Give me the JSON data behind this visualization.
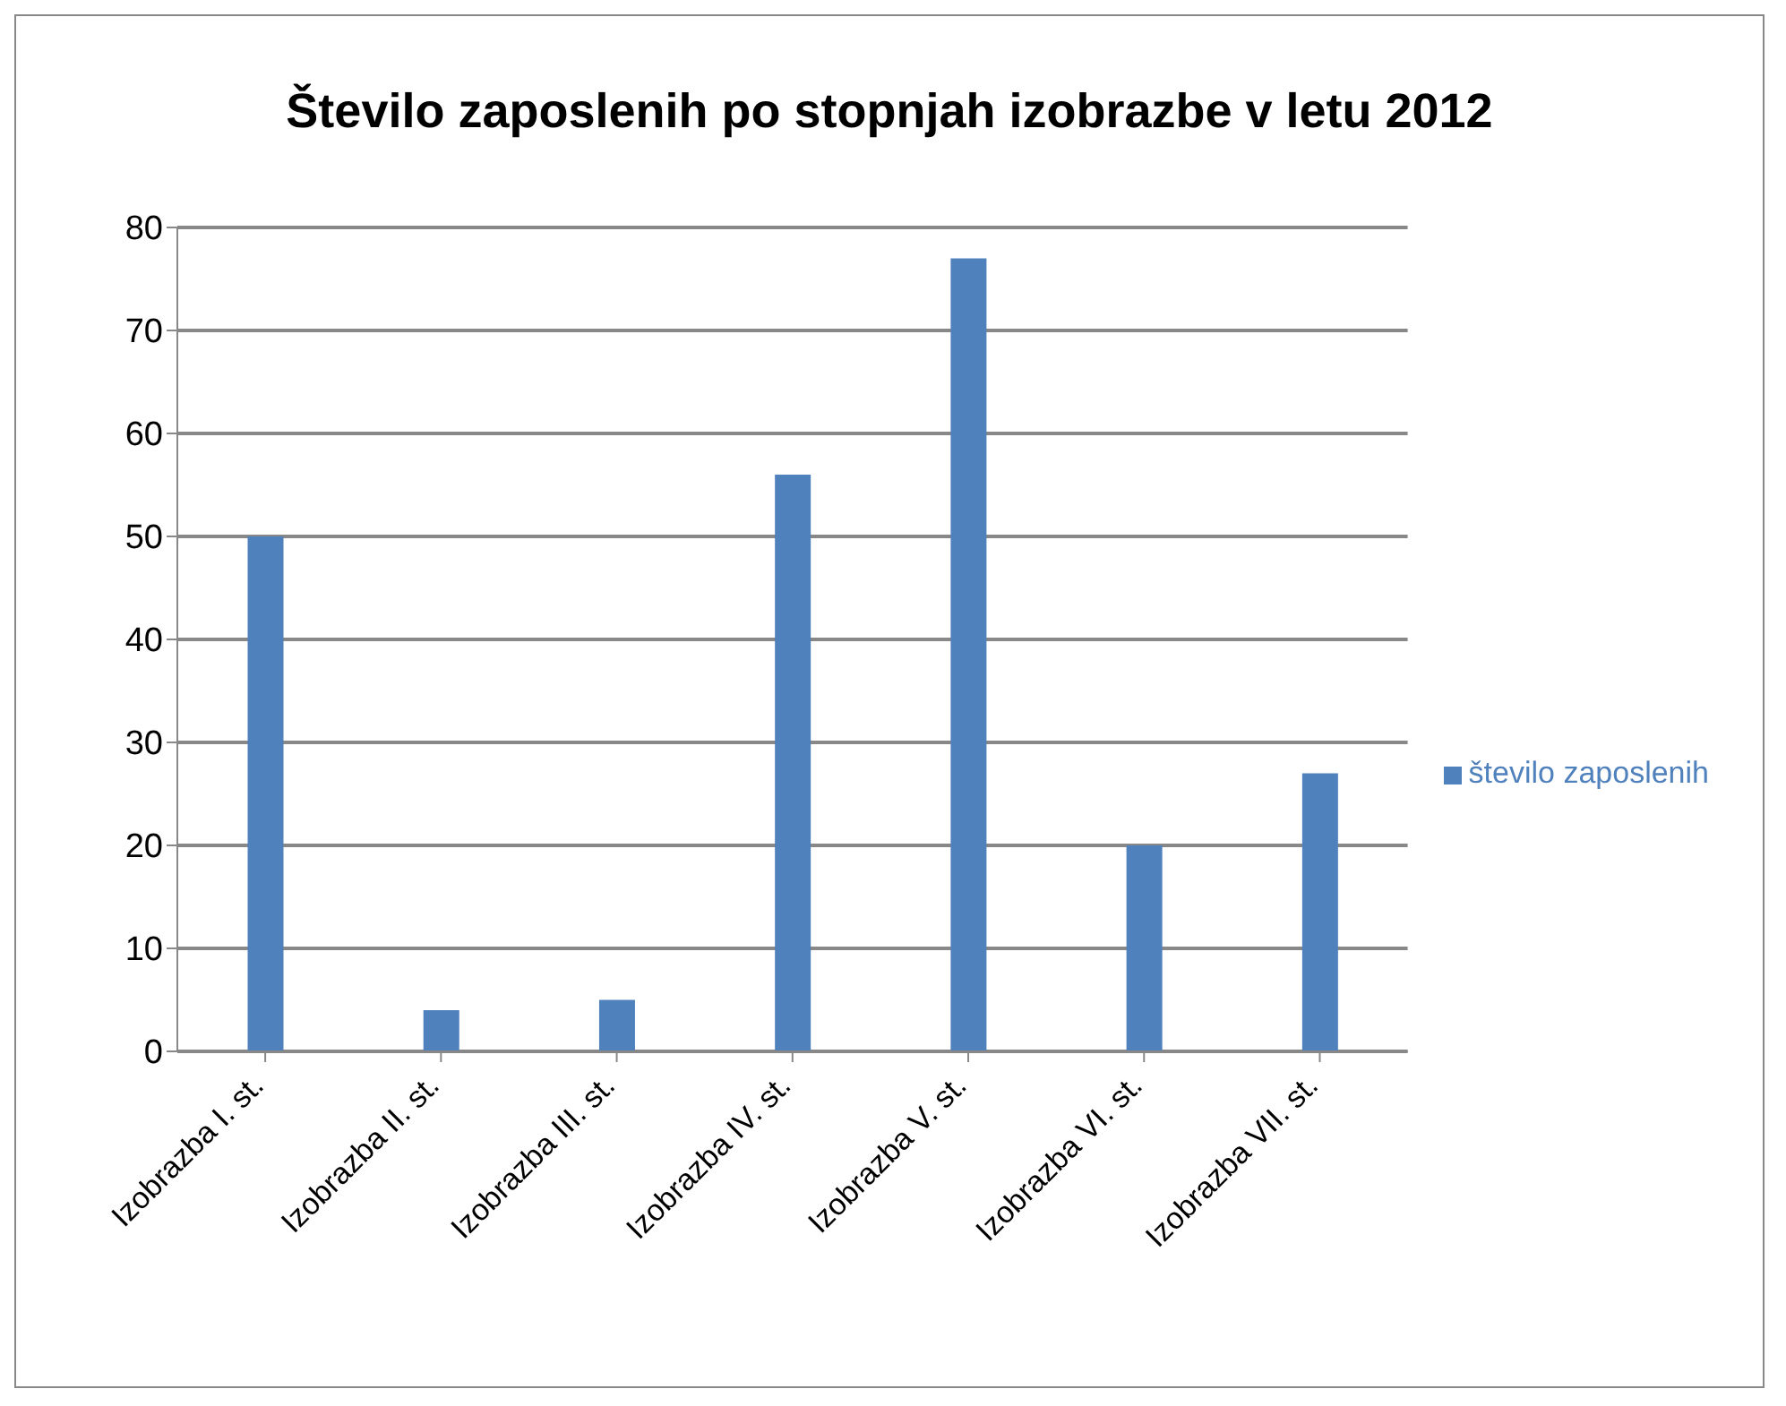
{
  "chart_data": {
    "type": "bar",
    "title": "Število zaposlenih po stopnjah izobrazbe v letu 2012",
    "categories": [
      "Izobrazba I. st.",
      "Izobrazba II. st.",
      "Izobrazba III. st.",
      "Izobrazba IV. st.",
      "Izobrazba V. st.",
      "Izobrazba VI. st.",
      "Izobrazba VII. st."
    ],
    "series": [
      {
        "name": "število zaposlenih",
        "color": "#4f81bd",
        "values": [
          50,
          4,
          5,
          56,
          77,
          20,
          27
        ]
      }
    ],
    "ylim": [
      0,
      80
    ],
    "yticks": [
      0,
      10,
      20,
      30,
      40,
      50,
      60,
      70,
      80
    ],
    "grid": "y",
    "legend": "right"
  }
}
